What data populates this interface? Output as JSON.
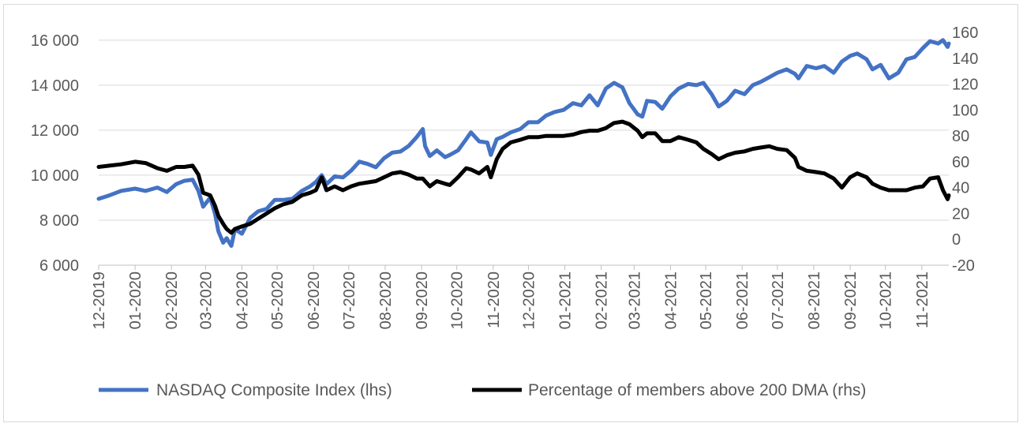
{
  "chart_data": {
    "type": "line",
    "title": "",
    "xlabel": "",
    "ylabel": "",
    "x_tick_labels": [
      "12-2019",
      "01-2020",
      "02-2020",
      "03-2020",
      "04-2020",
      "05-2020",
      "06-2020",
      "07-2020",
      "08-2020",
      "09-2020",
      "10-2020",
      "11-2020",
      "12-2020",
      "01-2021",
      "02-2021",
      "03-2021",
      "04-2021",
      "05-2021",
      "06-2021",
      "07-2021",
      "08-2021",
      "09-2021",
      "10-2021",
      "11-2021"
    ],
    "x_range": [
      "2019-12-01",
      "2021-11-24"
    ],
    "y_left": {
      "ticks": [
        6000,
        8000,
        10000,
        12000,
        14000,
        16000
      ],
      "tick_labels": [
        "6 000",
        "8 000",
        "10 000",
        "12 000",
        "14 000",
        "16 000"
      ],
      "ylim": [
        6000,
        16800
      ]
    },
    "y_right": {
      "ticks": [
        -20,
        0,
        20,
        40,
        60,
        80,
        100,
        120,
        140,
        160
      ],
      "tick_labels": [
        "-20",
        "0",
        "20",
        "40",
        "60",
        "80",
        "100",
        "120",
        "140",
        "160"
      ],
      "ylim": [
        -20,
        168
      ]
    },
    "grid": "horizontal",
    "legend_position": "bottom",
    "series": [
      {
        "name": "NASDAQ Composite Index (lhs)",
        "axis": "left",
        "color": "#4472c4",
        "points": [
          [
            "2019-12-01",
            8950
          ],
          [
            "2019-12-10",
            9100
          ],
          [
            "2019-12-20",
            9300
          ],
          [
            "2020-01-01",
            9400
          ],
          [
            "2020-01-10",
            9300
          ],
          [
            "2020-01-20",
            9450
          ],
          [
            "2020-01-28",
            9250
          ],
          [
            "2020-02-05",
            9600
          ],
          [
            "2020-02-12",
            9750
          ],
          [
            "2020-02-19",
            9800
          ],
          [
            "2020-02-24",
            9300
          ],
          [
            "2020-02-28",
            8600
          ],
          [
            "2020-03-05",
            9000
          ],
          [
            "2020-03-09",
            8300
          ],
          [
            "2020-03-12",
            7500
          ],
          [
            "2020-03-16",
            7000
          ],
          [
            "2020-03-19",
            7200
          ],
          [
            "2020-03-23",
            6860
          ],
          [
            "2020-03-26",
            7600
          ],
          [
            "2020-04-01",
            7400
          ],
          [
            "2020-04-08",
            8100
          ],
          [
            "2020-04-15",
            8400
          ],
          [
            "2020-04-22",
            8500
          ],
          [
            "2020-04-29",
            8900
          ],
          [
            "2020-05-06",
            8900
          ],
          [
            "2020-05-14",
            8950
          ],
          [
            "2020-05-22",
            9300
          ],
          [
            "2020-05-29",
            9500
          ],
          [
            "2020-06-03",
            9700
          ],
          [
            "2020-06-08",
            10000
          ],
          [
            "2020-06-12",
            9600
          ],
          [
            "2020-06-19",
            9950
          ],
          [
            "2020-06-26",
            9900
          ],
          [
            "2020-07-03",
            10200
          ],
          [
            "2020-07-10",
            10600
          ],
          [
            "2020-07-17",
            10500
          ],
          [
            "2020-07-24",
            10350
          ],
          [
            "2020-07-31",
            10750
          ],
          [
            "2020-08-07",
            11000
          ],
          [
            "2020-08-14",
            11050
          ],
          [
            "2020-08-21",
            11300
          ],
          [
            "2020-08-28",
            11700
          ],
          [
            "2020-09-02",
            12050
          ],
          [
            "2020-09-04",
            11300
          ],
          [
            "2020-09-08",
            10850
          ],
          [
            "2020-09-14",
            11100
          ],
          [
            "2020-09-21",
            10800
          ],
          [
            "2020-09-25",
            10900
          ],
          [
            "2020-10-02",
            11100
          ],
          [
            "2020-10-09",
            11600
          ],
          [
            "2020-10-13",
            11900
          ],
          [
            "2020-10-20",
            11500
          ],
          [
            "2020-10-27",
            11450
          ],
          [
            "2020-10-30",
            10900
          ],
          [
            "2020-11-04",
            11600
          ],
          [
            "2020-11-09",
            11700
          ],
          [
            "2020-11-16",
            11900
          ],
          [
            "2020-11-24",
            12050
          ],
          [
            "2020-12-01",
            12350
          ],
          [
            "2020-12-09",
            12350
          ],
          [
            "2020-12-16",
            12650
          ],
          [
            "2020-12-23",
            12800
          ],
          [
            "2020-12-31",
            12900
          ],
          [
            "2021-01-08",
            13200
          ],
          [
            "2021-01-15",
            13100
          ],
          [
            "2021-01-22",
            13550
          ],
          [
            "2021-01-29",
            13100
          ],
          [
            "2021-02-05",
            13850
          ],
          [
            "2021-02-12",
            14100
          ],
          [
            "2021-02-19",
            13900
          ],
          [
            "2021-02-25",
            13200
          ],
          [
            "2021-03-04",
            12700
          ],
          [
            "2021-03-08",
            12600
          ],
          [
            "2021-03-12",
            13300
          ],
          [
            "2021-03-19",
            13250
          ],
          [
            "2021-03-25",
            12950
          ],
          [
            "2021-04-01",
            13500
          ],
          [
            "2021-04-08",
            13850
          ],
          [
            "2021-04-16",
            14050
          ],
          [
            "2021-04-23",
            14000
          ],
          [
            "2021-04-29",
            14100
          ],
          [
            "2021-05-06",
            13600
          ],
          [
            "2021-05-12",
            13050
          ],
          [
            "2021-05-19",
            13300
          ],
          [
            "2021-05-26",
            13750
          ],
          [
            "2021-06-03",
            13600
          ],
          [
            "2021-06-10",
            14000
          ],
          [
            "2021-06-17",
            14150
          ],
          [
            "2021-06-24",
            14350
          ],
          [
            "2021-07-01",
            14550
          ],
          [
            "2021-07-09",
            14700
          ],
          [
            "2021-07-16",
            14500
          ],
          [
            "2021-07-19",
            14300
          ],
          [
            "2021-07-26",
            14850
          ],
          [
            "2021-08-03",
            14750
          ],
          [
            "2021-08-10",
            14850
          ],
          [
            "2021-08-18",
            14550
          ],
          [
            "2021-08-25",
            15050
          ],
          [
            "2021-09-01",
            15300
          ],
          [
            "2021-09-07",
            15400
          ],
          [
            "2021-09-15",
            15150
          ],
          [
            "2021-09-20",
            14700
          ],
          [
            "2021-09-27",
            14900
          ],
          [
            "2021-10-04",
            14300
          ],
          [
            "2021-10-12",
            14550
          ],
          [
            "2021-10-19",
            15150
          ],
          [
            "2021-10-26",
            15250
          ],
          [
            "2021-11-02",
            15650
          ],
          [
            "2021-11-08",
            15950
          ],
          [
            "2021-11-15",
            15850
          ],
          [
            "2021-11-19",
            16000
          ],
          [
            "2021-11-23",
            15700
          ],
          [
            "2021-11-24",
            15850
          ]
        ]
      },
      {
        "name": "Percentage of members above 200 DMA (rhs)",
        "axis": "right",
        "color": "#000000",
        "points": [
          [
            "2019-12-01",
            56
          ],
          [
            "2019-12-10",
            57
          ],
          [
            "2019-12-20",
            58
          ],
          [
            "2020-01-01",
            60
          ],
          [
            "2020-01-10",
            59
          ],
          [
            "2020-01-20",
            55
          ],
          [
            "2020-01-28",
            53
          ],
          [
            "2020-02-05",
            56
          ],
          [
            "2020-02-12",
            56
          ],
          [
            "2020-02-19",
            57
          ],
          [
            "2020-02-24",
            50
          ],
          [
            "2020-02-28",
            36
          ],
          [
            "2020-03-05",
            34
          ],
          [
            "2020-03-09",
            26
          ],
          [
            "2020-03-12",
            18
          ],
          [
            "2020-03-16",
            12
          ],
          [
            "2020-03-19",
            8
          ],
          [
            "2020-03-23",
            5
          ],
          [
            "2020-03-26",
            8
          ],
          [
            "2020-04-01",
            10
          ],
          [
            "2020-04-08",
            12
          ],
          [
            "2020-04-15",
            16
          ],
          [
            "2020-04-22",
            20
          ],
          [
            "2020-04-29",
            24
          ],
          [
            "2020-05-06",
            27
          ],
          [
            "2020-05-14",
            29
          ],
          [
            "2020-05-22",
            34
          ],
          [
            "2020-05-29",
            36
          ],
          [
            "2020-06-03",
            38
          ],
          [
            "2020-06-08",
            48
          ],
          [
            "2020-06-12",
            38
          ],
          [
            "2020-06-19",
            41
          ],
          [
            "2020-06-26",
            38
          ],
          [
            "2020-07-03",
            41
          ],
          [
            "2020-07-10",
            43
          ],
          [
            "2020-07-17",
            44
          ],
          [
            "2020-07-24",
            45
          ],
          [
            "2020-07-31",
            48
          ],
          [
            "2020-08-07",
            51
          ],
          [
            "2020-08-14",
            52
          ],
          [
            "2020-08-21",
            50
          ],
          [
            "2020-08-28",
            47
          ],
          [
            "2020-09-02",
            47
          ],
          [
            "2020-09-04",
            45
          ],
          [
            "2020-09-08",
            41
          ],
          [
            "2020-09-14",
            45
          ],
          [
            "2020-09-21",
            43
          ],
          [
            "2020-09-25",
            42
          ],
          [
            "2020-10-02",
            48
          ],
          [
            "2020-10-09",
            55
          ],
          [
            "2020-10-13",
            54
          ],
          [
            "2020-10-20",
            51
          ],
          [
            "2020-10-27",
            56
          ],
          [
            "2020-10-30",
            48
          ],
          [
            "2020-11-04",
            62
          ],
          [
            "2020-11-09",
            70
          ],
          [
            "2020-11-16",
            75
          ],
          [
            "2020-11-24",
            77
          ],
          [
            "2020-12-01",
            79
          ],
          [
            "2020-12-09",
            79
          ],
          [
            "2020-12-16",
            80
          ],
          [
            "2020-12-23",
            80
          ],
          [
            "2020-12-31",
            80
          ],
          [
            "2021-01-08",
            81
          ],
          [
            "2021-01-15",
            83
          ],
          [
            "2021-01-22",
            84
          ],
          [
            "2021-01-29",
            84
          ],
          [
            "2021-02-05",
            86
          ],
          [
            "2021-02-12",
            90
          ],
          [
            "2021-02-19",
            91
          ],
          [
            "2021-02-25",
            89
          ],
          [
            "2021-03-04",
            84
          ],
          [
            "2021-03-08",
            79
          ],
          [
            "2021-03-12",
            82
          ],
          [
            "2021-03-19",
            82
          ],
          [
            "2021-03-25",
            76
          ],
          [
            "2021-04-01",
            76
          ],
          [
            "2021-04-08",
            79
          ],
          [
            "2021-04-16",
            77
          ],
          [
            "2021-04-23",
            75
          ],
          [
            "2021-04-29",
            70
          ],
          [
            "2021-05-06",
            66
          ],
          [
            "2021-05-12",
            62
          ],
          [
            "2021-05-19",
            65
          ],
          [
            "2021-05-26",
            67
          ],
          [
            "2021-06-03",
            68
          ],
          [
            "2021-06-10",
            70
          ],
          [
            "2021-06-17",
            71
          ],
          [
            "2021-06-24",
            72
          ],
          [
            "2021-07-01",
            70
          ],
          [
            "2021-07-09",
            69
          ],
          [
            "2021-07-16",
            63
          ],
          [
            "2021-07-19",
            56
          ],
          [
            "2021-07-26",
            53
          ],
          [
            "2021-08-03",
            52
          ],
          [
            "2021-08-10",
            51
          ],
          [
            "2021-08-18",
            47
          ],
          [
            "2021-08-25",
            40
          ],
          [
            "2021-09-01",
            48
          ],
          [
            "2021-09-07",
            51
          ],
          [
            "2021-09-15",
            48
          ],
          [
            "2021-09-20",
            43
          ],
          [
            "2021-09-27",
            40
          ],
          [
            "2021-10-04",
            38
          ],
          [
            "2021-10-12",
            38
          ],
          [
            "2021-10-19",
            38
          ],
          [
            "2021-10-26",
            40
          ],
          [
            "2021-11-02",
            41
          ],
          [
            "2021-11-08",
            47
          ],
          [
            "2021-11-15",
            48
          ],
          [
            "2021-11-19",
            38
          ],
          [
            "2021-11-23",
            31
          ],
          [
            "2021-11-24",
            34
          ]
        ]
      }
    ]
  }
}
